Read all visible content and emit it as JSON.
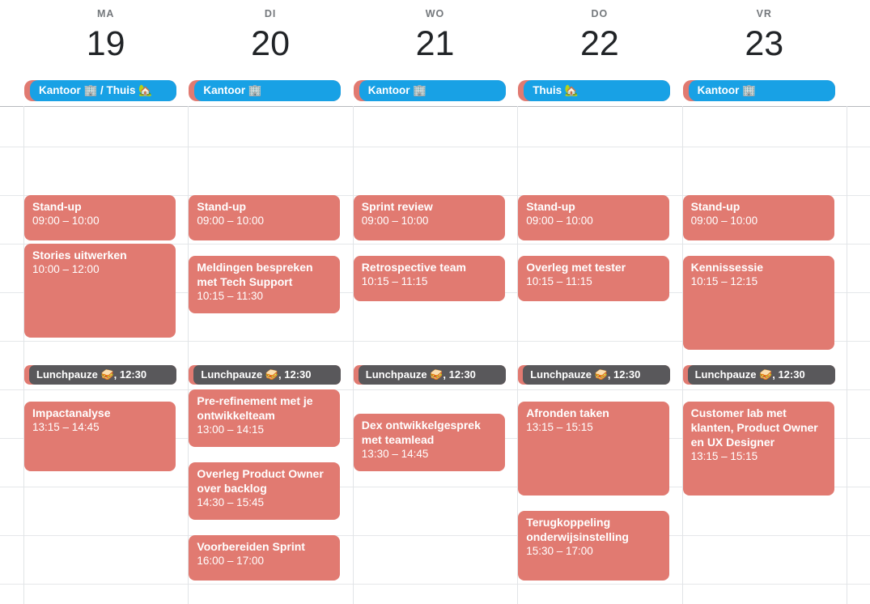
{
  "colors": {
    "event_salmon": "#E17A71",
    "allday_blue": "#18A1E5",
    "lunch_dark_gray": "#59585B",
    "day_label_gray": "#74787C",
    "day_number_dark": "#212427",
    "event_text": "#FFFFFF"
  },
  "week": {
    "days": [
      {
        "label": "MA",
        "number": "19",
        "banner": "Kantoor 🏢 / Thuis 🏡",
        "events": [
          {
            "kind": "meeting",
            "title": "Stand-up",
            "start": "09:00",
            "end": "10:00",
            "time_label": "09:00 – 10:00"
          },
          {
            "kind": "meeting",
            "title": "Stories uitwerken",
            "start": "10:00",
            "end": "12:00",
            "time_label": "10:00 – 12:00"
          },
          {
            "kind": "lunch",
            "label": "Lunchpauze 🥪, 12:30",
            "start": "12:30"
          },
          {
            "kind": "meeting",
            "title": "Impactanalyse",
            "start": "13:15",
            "end": "14:45",
            "time_label": "13:15 – 14:45"
          }
        ]
      },
      {
        "label": "DI",
        "number": "20",
        "banner": "Kantoor 🏢",
        "events": [
          {
            "kind": "meeting",
            "title": "Stand-up",
            "start": "09:00",
            "end": "10:00",
            "time_label": "09:00 – 10:00"
          },
          {
            "kind": "meeting",
            "title": "Meldingen bespreken met Tech Support",
            "start": "10:15",
            "end": "11:30",
            "time_label": "10:15 – 11:30"
          },
          {
            "kind": "lunch",
            "label": "Lunchpauze 🥪, 12:30",
            "start": "12:30"
          },
          {
            "kind": "meeting",
            "title": "Pre-refinement met je ontwikkelteam",
            "start": "13:00",
            "end": "14:15",
            "time_label": "13:00 – 14:15"
          },
          {
            "kind": "meeting",
            "title": "Overleg Product Owner over backlog",
            "start": "14:30",
            "end": "15:45",
            "time_label": "14:30 – 15:45"
          },
          {
            "kind": "meeting",
            "title": "Voorbereiden Sprint",
            "start": "16:00",
            "end": "17:00",
            "time_label": "16:00 – 17:00"
          }
        ]
      },
      {
        "label": "WO",
        "number": "21",
        "banner": "Kantoor 🏢",
        "events": [
          {
            "kind": "meeting",
            "title": "Sprint review",
            "start": "09:00",
            "end": "10:00",
            "time_label": "09:00 – 10:00"
          },
          {
            "kind": "meeting",
            "title": "Retrospective team",
            "start": "10:15",
            "end": "11:15",
            "time_label": "10:15 – 11:15"
          },
          {
            "kind": "lunch",
            "label": "Lunchpauze 🥪, 12:30",
            "start": "12:30"
          },
          {
            "kind": "meeting",
            "title": "Dex ontwikkelgesprek met teamlead",
            "start": "13:30",
            "end": "14:45",
            "time_label": "13:30 – 14:45"
          }
        ]
      },
      {
        "label": "DO",
        "number": "22",
        "banner": "Thuis 🏡",
        "events": [
          {
            "kind": "meeting",
            "title": "Stand-up",
            "start": "09:00",
            "end": "10:00",
            "time_label": "09:00 – 10:00"
          },
          {
            "kind": "meeting",
            "title": "Overleg met tester",
            "start": "10:15",
            "end": "11:15",
            "time_label": "10:15 – 11:15"
          },
          {
            "kind": "lunch",
            "label": "Lunchpauze 🥪, 12:30",
            "start": "12:30"
          },
          {
            "kind": "meeting",
            "title": "Afronden taken",
            "start": "13:15",
            "end": "15:15",
            "time_label": "13:15 – 15:15"
          },
          {
            "kind": "meeting",
            "title": "Terugkoppeling onderwijsinstelling",
            "start": "15:30",
            "end": "17:00",
            "time_label": "15:30 – 17:00"
          }
        ]
      },
      {
        "label": "VR",
        "number": "23",
        "banner": "Kantoor 🏢",
        "events": [
          {
            "kind": "meeting",
            "title": "Stand-up",
            "start": "09:00",
            "end": "10:00",
            "time_label": "09:00 – 10:00"
          },
          {
            "kind": "meeting",
            "title": "Kennissessie",
            "start": "10:15",
            "end": "12:15",
            "time_label": "10:15 – 12:15"
          },
          {
            "kind": "lunch",
            "label": "Lunchpauze 🥪, 12:30",
            "start": "12:30"
          },
          {
            "kind": "meeting",
            "title": "Customer lab met klanten, Product Owner en UX Designer",
            "start": "13:15",
            "end": "15:15",
            "time_label": "13:15 – 15:15"
          }
        ]
      }
    ]
  }
}
